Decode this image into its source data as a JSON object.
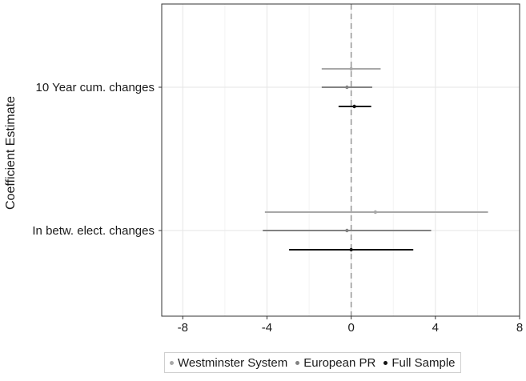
{
  "chart_data": {
    "type": "scatter",
    "subtype": "coefficient-plot-horizontal-error-bars",
    "title": "",
    "xlabel": "",
    "ylabel": "Coefficient Estimate",
    "xlim": [
      -9,
      8
    ],
    "xticks": [
      -8,
      -4,
      0,
      4,
      8
    ],
    "xtick_labels": [
      "-8",
      "-4",
      "0",
      "4",
      "8"
    ],
    "categories": [
      "10 Year cum. changes",
      "In betw. elect. changes"
    ],
    "reference_line": {
      "x": 0,
      "style": "dashed"
    },
    "grid": true,
    "legend_position": "bottom",
    "series": [
      {
        "name": "Westminster System",
        "color": "#a8a8a8",
        "estimates": [
          0.0,
          1.15
        ],
        "lower": [
          -1.4,
          -4.1
        ],
        "upper": [
          1.4,
          6.5
        ]
      },
      {
        "name": "European PR",
        "color": "#828282",
        "estimates": [
          -0.2,
          -0.2
        ],
        "lower": [
          -1.4,
          -4.2
        ],
        "upper": [
          1.0,
          3.8
        ]
      },
      {
        "name": "Full Sample",
        "color": "#141414",
        "estimates": [
          0.15,
          0.0
        ],
        "lower": [
          -0.6,
          -2.95
        ],
        "upper": [
          0.95,
          2.95
        ]
      }
    ]
  }
}
